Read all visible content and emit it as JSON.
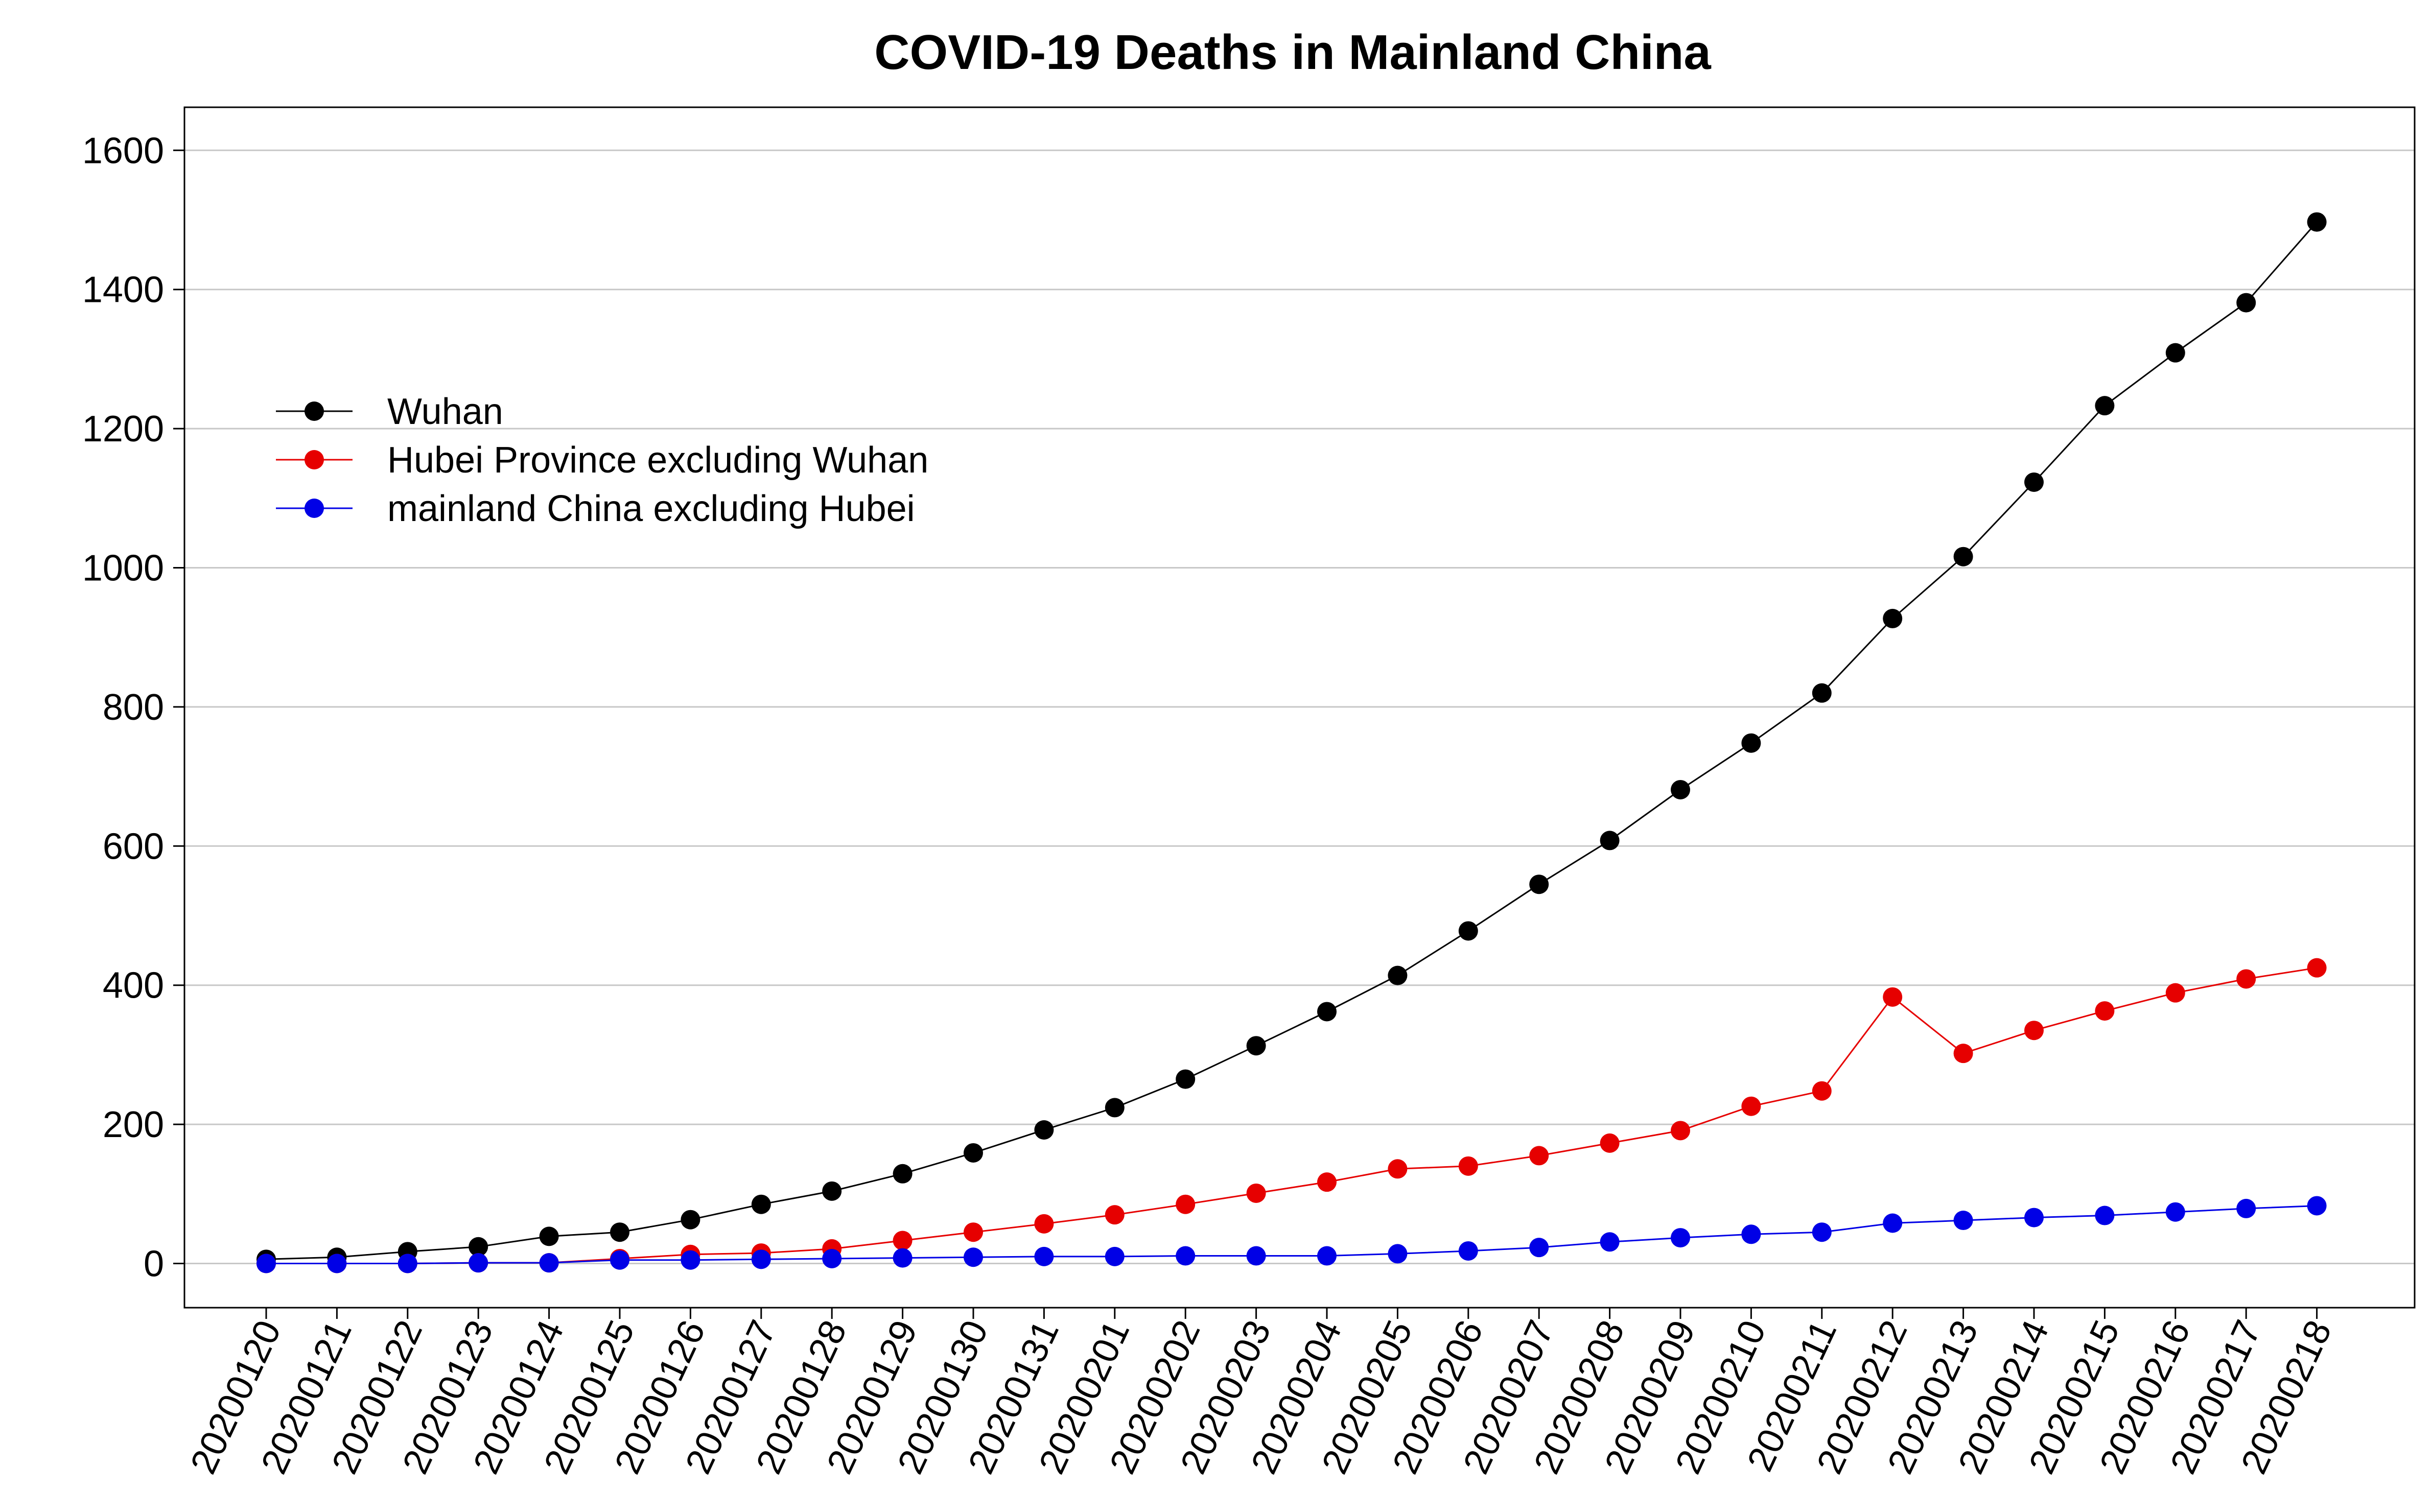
{
  "chart_data": {
    "type": "line",
    "title": "COVID-19 Deaths in Mainland China",
    "xlabel": "",
    "ylabel": "",
    "categories": [
      "20200120",
      "20200121",
      "20200122",
      "20200123",
      "20200124",
      "20200125",
      "20200126",
      "20200127",
      "20200128",
      "20200129",
      "20200130",
      "20200131",
      "20200201",
      "20200202",
      "20200203",
      "20200204",
      "20200205",
      "20200206",
      "20200207",
      "20200208",
      "20200209",
      "20200210",
      "20200211",
      "20200212",
      "20200213",
      "20200214",
      "20200215",
      "20200216",
      "20200217",
      "20200218"
    ],
    "ylim": [
      -70,
      1665
    ],
    "yticks": [
      0,
      200,
      400,
      600,
      800,
      1000,
      1200,
      1400,
      1600
    ],
    "grid": "horizontal",
    "legend_position": "upper-left",
    "series": [
      {
        "name": "Wuhan",
        "color": "#000000",
        "values": [
          6,
          9,
          17,
          24,
          39,
          45,
          63,
          85,
          104,
          129,
          159,
          192,
          224,
          265,
          313,
          362,
          414,
          478,
          545,
          608,
          681,
          748,
          820,
          927,
          1016,
          1123,
          1233,
          1309,
          1381,
          1497
        ]
      },
      {
        "name": "Hubei Province excluding Wuhan",
        "color": "#e60000",
        "values": [
          0,
          0,
          0,
          1,
          1,
          7,
          13,
          15,
          21,
          33,
          45,
          57,
          70,
          85,
          101,
          117,
          136,
          140,
          155,
          173,
          191,
          226,
          248,
          383,
          302,
          335,
          363,
          389,
          409,
          425
        ]
      },
      {
        "name": "mainland China excluding Hubei",
        "color": "#0000e6",
        "values": [
          0,
          0,
          0,
          1,
          1,
          5,
          5,
          6,
          7,
          8,
          9,
          10,
          10,
          11,
          11,
          11,
          14,
          18,
          23,
          31,
          37,
          42,
          45,
          58,
          62,
          66,
          69,
          74,
          79,
          83
        ]
      }
    ]
  }
}
